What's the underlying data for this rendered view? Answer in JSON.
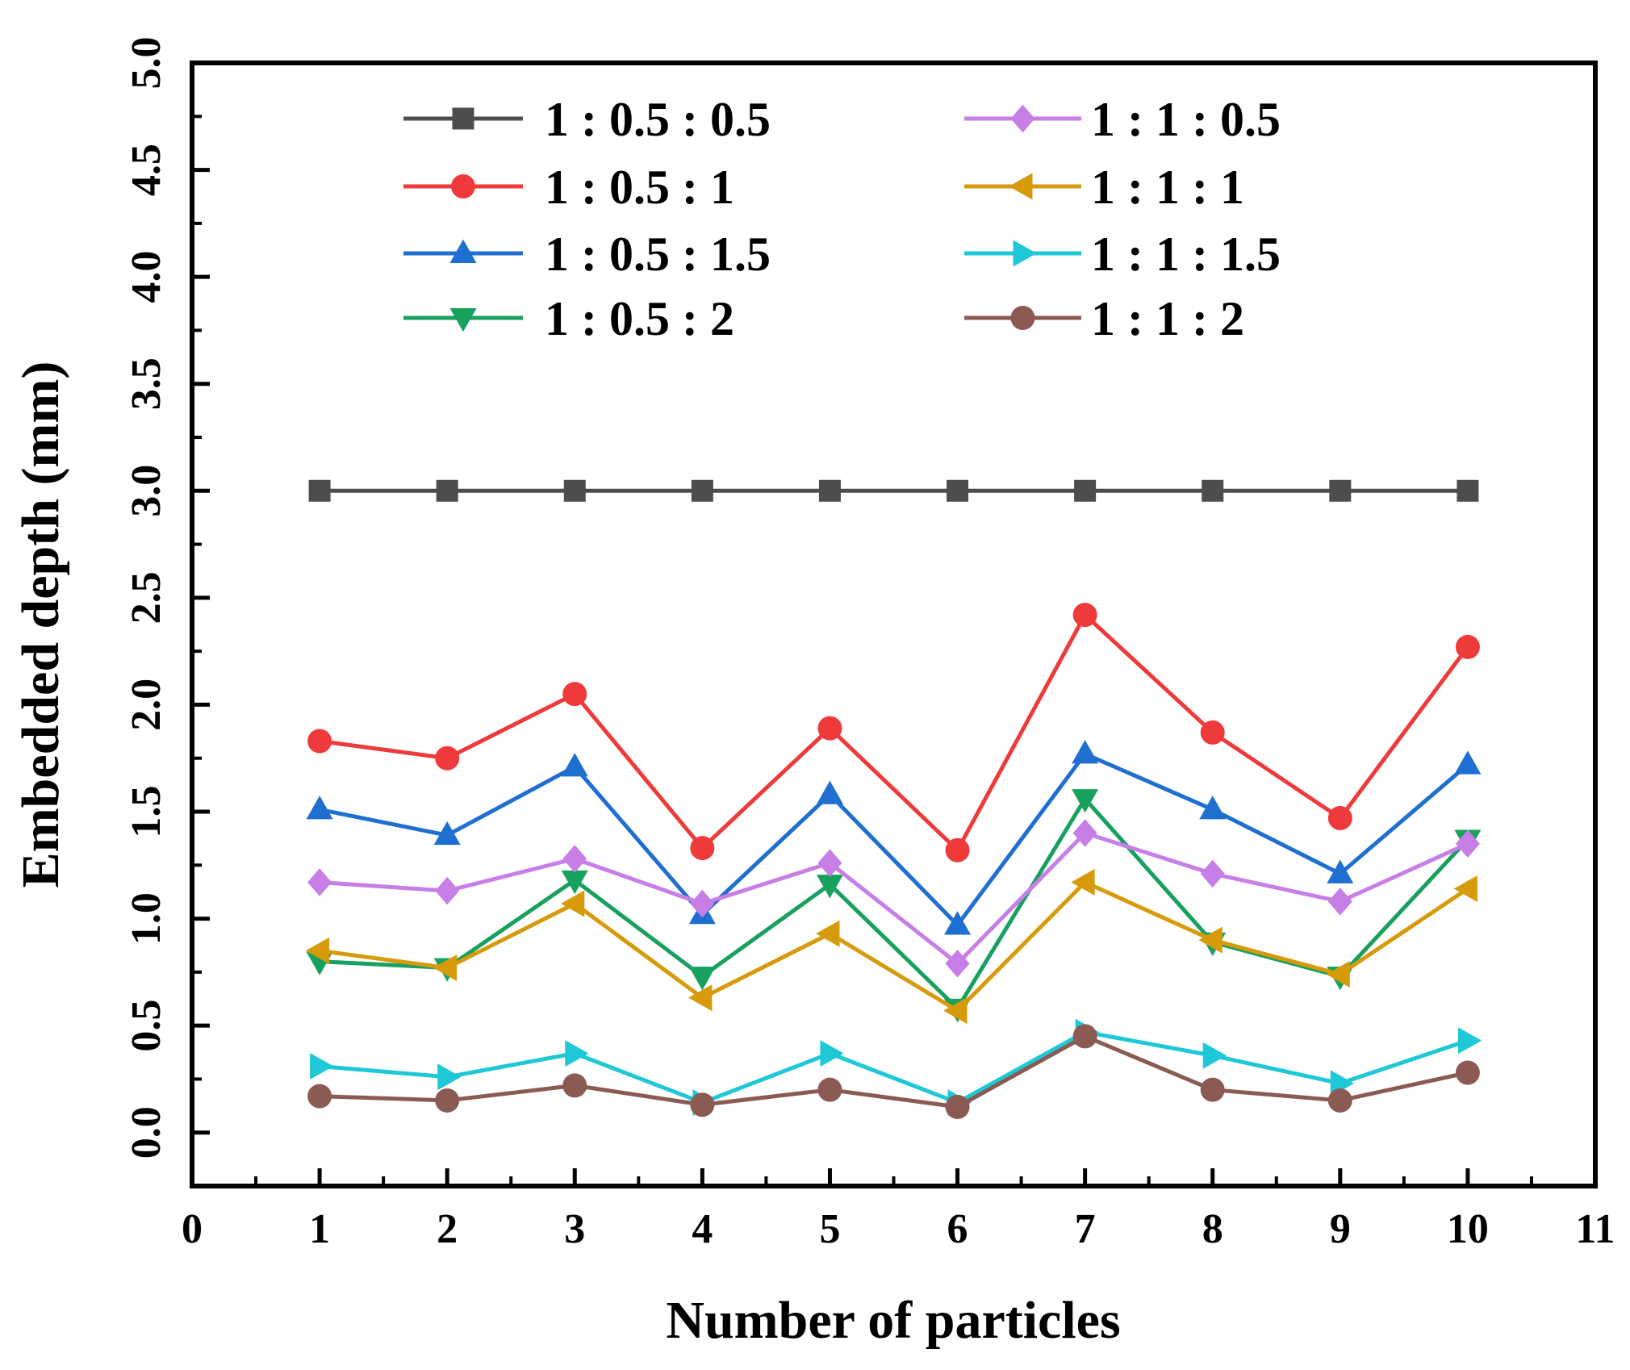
{
  "chart_data": {
    "type": "line",
    "xlabel": "Number of particles",
    "ylabel": "Embedded depth (mm)",
    "xlim": [
      0,
      11
    ],
    "ylim": [
      0,
      5.0
    ],
    "x_plot_min": 0,
    "x_plot_max": 11,
    "y_plot_min": -0.25,
    "y_plot_max": 5.0,
    "x_ticks": [
      "0",
      "1",
      "2",
      "3",
      "4",
      "5",
      "6",
      "7",
      "8",
      "9",
      "10",
      "11"
    ],
    "y_ticks": [
      "0.0",
      "0.5",
      "1.0",
      "1.5",
      "2.0",
      "2.5",
      "3.0",
      "3.5",
      "4.0",
      "4.5",
      "5.0"
    ],
    "grid": false,
    "legend_position": "top",
    "x": [
      1,
      2,
      3,
      4,
      5,
      6,
      7,
      8,
      9,
      10
    ],
    "series": [
      {
        "name": "1 : 0.5 : 0.5",
        "color": "#4d4d4d",
        "marker": "square",
        "values": [
          3.0,
          3.0,
          3.0,
          3.0,
          3.0,
          3.0,
          3.0,
          3.0,
          3.0,
          3.0
        ]
      },
      {
        "name": "1 : 0.5 : 1",
        "color": "#ee3a3a",
        "marker": "circle",
        "values": [
          1.83,
          1.75,
          2.05,
          1.33,
          1.89,
          1.32,
          2.42,
          1.87,
          1.47,
          2.27
        ]
      },
      {
        "name": "1 : 0.5 : 1.5",
        "color": "#1f6fd1",
        "marker": "triangle-up",
        "values": [
          1.51,
          1.39,
          1.71,
          1.02,
          1.58,
          0.97,
          1.77,
          1.51,
          1.21,
          1.72
        ]
      },
      {
        "name": "1 : 0.5 : 2",
        "color": "#18a05e",
        "marker": "triangle-down",
        "values": [
          0.8,
          0.77,
          1.18,
          0.73,
          1.16,
          0.58,
          1.56,
          0.89,
          0.73,
          1.37
        ]
      },
      {
        "name": "1 : 1 : 0.5",
        "color": "#c77ee6",
        "marker": "diamond",
        "values": [
          1.17,
          1.13,
          1.28,
          1.07,
          1.26,
          0.79,
          1.4,
          1.21,
          1.08,
          1.35
        ]
      },
      {
        "name": "1 : 1 : 1",
        "color": "#d69a0a",
        "marker": "triangle-left",
        "values": [
          0.85,
          0.77,
          1.07,
          0.63,
          0.93,
          0.57,
          1.17,
          0.9,
          0.74,
          1.14
        ]
      },
      {
        "name": "1 : 1 : 1.5",
        "color": "#1ec8d6",
        "marker": "triangle-right",
        "values": [
          0.31,
          0.26,
          0.37,
          0.14,
          0.37,
          0.14,
          0.47,
          0.36,
          0.23,
          0.43
        ]
      },
      {
        "name": "1 : 1 : 2",
        "color": "#8b5a52",
        "marker": "circle",
        "values": [
          0.17,
          0.15,
          0.22,
          0.13,
          0.2,
          0.12,
          0.45,
          0.2,
          0.15,
          0.28
        ]
      }
    ]
  }
}
